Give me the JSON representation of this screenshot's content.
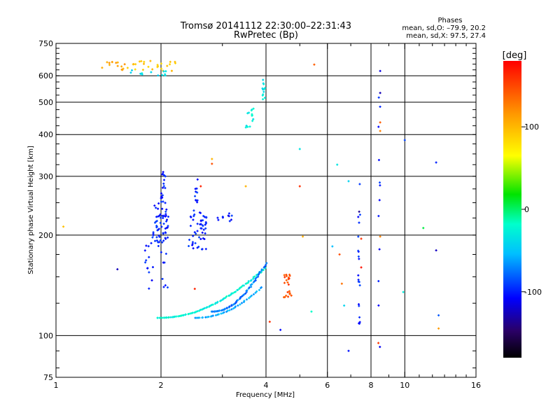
{
  "chart_data": {
    "type": "scatter",
    "title": "Tromsø 20141112 22:30:00–22:31:43",
    "subtitle": "RwPretec (Bp)",
    "xlabel": "Frequency [MHz]",
    "ylabel": "Stationary phase Virtual Height [km]",
    "x_scale": "log",
    "y_scale": "log",
    "xlim": [
      1,
      16
    ],
    "ylim": [
      75,
      750
    ],
    "x_ticks": [
      1,
      2,
      4,
      6,
      8,
      10,
      16
    ],
    "x_tick_labels": [
      "1",
      "2",
      "4",
      "6",
      "8",
      "10",
      "16"
    ],
    "y_ticks": [
      75,
      100,
      200,
      300,
      400,
      500,
      600,
      750
    ],
    "y_tick_labels": [
      "75",
      "100",
      "200",
      "300",
      "400",
      "500",
      "600",
      "750"
    ],
    "grid": true,
    "stats": {
      "heading": "Phases",
      "line1": "mean, sd,O: –79.9, 20.2",
      "line2": "mean, sd,X:  97.5, 27.4"
    },
    "colorbar": {
      "label": "[deg]",
      "range": [
        -180,
        180
      ],
      "ticks": [
        100,
        0,
        -100
      ],
      "tick_labels": [
        "100",
        "0",
        "-100"
      ]
    },
    "clusters": [
      {
        "xr": [
          1.9,
          2.1
        ],
        "yr": [
          185,
          250
        ],
        "n": 60,
        "phase": -100
      },
      {
        "xr": [
          2.4,
          2.7
        ],
        "yr": [
          180,
          240
        ],
        "n": 50,
        "phase": -100
      },
      {
        "xr": [
          2.0,
          2.06
        ],
        "yr": [
          250,
          315
        ],
        "n": 18,
        "phase": -100
      },
      {
        "xr": [
          2.5,
          2.55
        ],
        "yr": [
          250,
          305
        ],
        "n": 10,
        "phase": -100
      },
      {
        "xr": [
          1.8,
          1.9
        ],
        "yr": [
          130,
          200
        ],
        "n": 14,
        "phase": -100
      },
      {
        "xr": [
          2.0,
          2.1
        ],
        "yr": [
          130,
          180
        ],
        "n": 8,
        "phase": -100
      },
      {
        "xr": [
          2.9,
          3.2
        ],
        "yr": [
          220,
          235
        ],
        "n": 10,
        "phase": -100
      },
      {
        "xr": [
          1.35,
          1.6
        ],
        "yr": [
          620,
          665
        ],
        "n": 14,
        "phase": 110
      },
      {
        "xr": [
          1.6,
          2.2
        ],
        "yr": [
          620,
          665
        ],
        "n": 25,
        "phase": 90
      },
      {
        "xr": [
          1.6,
          2.1
        ],
        "yr": [
          600,
          625
        ],
        "n": 12,
        "phase": -40
      },
      {
        "xr": [
          3.5,
          3.7
        ],
        "yr": [
          420,
          490
        ],
        "n": 14,
        "phase": -30
      },
      {
        "xr": [
          3.9,
          3.98
        ],
        "yr": [
          500,
          600
        ],
        "n": 12,
        "phase": -30
      },
      {
        "xr": [
          4.5,
          4.75
        ],
        "yr": [
          130,
          155
        ],
        "n": 22,
        "phase": 150
      },
      {
        "xr": [
          7.35,
          7.45
        ],
        "yr": [
          85,
          300
        ],
        "n": 20,
        "phase": -100
      },
      {
        "xr": [
          8.4,
          8.5
        ],
        "yr": [
          90,
          520
        ],
        "n": 12,
        "phase": -100
      }
    ],
    "arcs": [
      {
        "x0": 1.95,
        "x1": 4.0,
        "y0": 113,
        "y1": 160,
        "n": 90,
        "phase": -25
      },
      {
        "x0": 2.8,
        "x1": 4.0,
        "y0": 118,
        "y1": 165,
        "n": 60,
        "phase": -75
      },
      {
        "x0": 2.5,
        "x1": 3.9,
        "y0": 113,
        "y1": 140,
        "n": 40,
        "phase": -60
      }
    ],
    "scatter_points": [
      {
        "x": 1.05,
        "y": 212,
        "phase": 100
      },
      {
        "x": 1.5,
        "y": 158,
        "phase": -120
      },
      {
        "x": 2.5,
        "y": 138,
        "phase": 160
      },
      {
        "x": 2.6,
        "y": 280,
        "phase": 170
      },
      {
        "x": 2.8,
        "y": 338,
        "phase": 110
      },
      {
        "x": 2.8,
        "y": 327,
        "phase": 140
      },
      {
        "x": 3.5,
        "y": 280,
        "phase": 100
      },
      {
        "x": 4.1,
        "y": 110,
        "phase": 160
      },
      {
        "x": 4.4,
        "y": 104,
        "phase": -100
      },
      {
        "x": 5.0,
        "y": 362,
        "phase": -30
      },
      {
        "x": 5.0,
        "y": 280,
        "phase": 150
      },
      {
        "x": 5.1,
        "y": 198,
        "phase": 110
      },
      {
        "x": 5.4,
        "y": 118,
        "phase": -20
      },
      {
        "x": 5.5,
        "y": 648,
        "phase": 140
      },
      {
        "x": 6.2,
        "y": 185,
        "phase": -50
      },
      {
        "x": 6.4,
        "y": 325,
        "phase": -40
      },
      {
        "x": 6.5,
        "y": 175,
        "phase": 150
      },
      {
        "x": 6.6,
        "y": 143,
        "phase": 120
      },
      {
        "x": 6.7,
        "y": 123,
        "phase": -30
      },
      {
        "x": 6.9,
        "y": 90,
        "phase": -110
      },
      {
        "x": 6.9,
        "y": 290,
        "phase": -40
      },
      {
        "x": 7.4,
        "y": 235,
        "phase": -140
      },
      {
        "x": 7.5,
        "y": 195,
        "phase": 170
      },
      {
        "x": 7.5,
        "y": 160,
        "phase": 170
      },
      {
        "x": 8.4,
        "y": 95,
        "phase": 160
      },
      {
        "x": 8.5,
        "y": 620,
        "phase": -110
      },
      {
        "x": 8.5,
        "y": 533,
        "phase": -120
      },
      {
        "x": 8.5,
        "y": 435,
        "phase": 150
      },
      {
        "x": 8.5,
        "y": 410,
        "phase": 120
      },
      {
        "x": 8.5,
        "y": 198,
        "phase": 130
      },
      {
        "x": 9.9,
        "y": 135,
        "phase": -30
      },
      {
        "x": 10.0,
        "y": 385,
        "phase": -100
      },
      {
        "x": 11.3,
        "y": 210,
        "phase": 10
      },
      {
        "x": 12.3,
        "y": 330,
        "phase": -110
      },
      {
        "x": 12.3,
        "y": 180,
        "phase": -120
      },
      {
        "x": 12.5,
        "y": 115,
        "phase": -80
      },
      {
        "x": 12.5,
        "y": 105,
        "phase": 110
      }
    ]
  }
}
